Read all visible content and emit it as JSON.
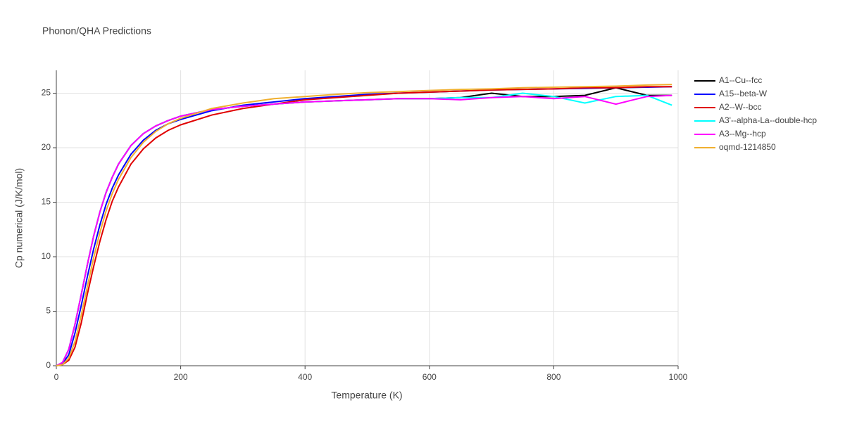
{
  "chart_data": {
    "type": "line",
    "title": "Phonon/QHA Predictions",
    "x_label": "Temperature (K)",
    "y_label": "Cp numerical (J/K/mol)",
    "xlim": [
      0,
      1000
    ],
    "ylim": [
      0,
      27.1
    ],
    "xticks": [
      0,
      200,
      400,
      600,
      800,
      1000
    ],
    "yticks": [
      0,
      5,
      10,
      15,
      20,
      25
    ],
    "grid": true,
    "x": [
      0,
      10,
      20,
      30,
      40,
      50,
      60,
      70,
      80,
      90,
      100,
      120,
      140,
      160,
      180,
      200,
      250,
      300,
      350,
      400,
      450,
      500,
      550,
      600,
      650,
      700,
      750,
      800,
      850,
      900,
      950,
      990
    ],
    "series": [
      {
        "name": "A1--Cu--fcc",
        "color": "#000000",
        "values": [
          0,
          0.3,
          1.5,
          3.8,
          6.5,
          9.3,
          11.9,
          14.1,
          15.9,
          17.3,
          18.5,
          20.2,
          21.3,
          22.0,
          22.5,
          22.9,
          23.5,
          23.8,
          24.0,
          24.2,
          24.3,
          24.4,
          24.5,
          24.5,
          24.6,
          25.0,
          24.7,
          24.7,
          24.8,
          25.5,
          24.8,
          24.8
        ]
      },
      {
        "name": "A15--beta-W",
        "color": "#0000ff",
        "values": [
          0,
          0.2,
          1.0,
          3.0,
          5.5,
          8.2,
          10.7,
          12.9,
          14.8,
          16.3,
          17.5,
          19.4,
          20.7,
          21.6,
          22.2,
          22.6,
          23.4,
          23.9,
          24.2,
          24.5,
          24.7,
          24.9,
          25.0,
          25.1,
          25.2,
          25.3,
          25.35,
          25.4,
          25.45,
          25.5,
          25.55,
          25.6
        ]
      },
      {
        "name": "A2--W--bcc",
        "color": "#e00000",
        "values": [
          0,
          0.1,
          0.5,
          1.7,
          3.9,
          6.6,
          9.1,
          11.4,
          13.4,
          15.1,
          16.4,
          18.5,
          19.9,
          20.9,
          21.6,
          22.1,
          23.0,
          23.6,
          24.0,
          24.4,
          24.6,
          24.8,
          25.0,
          25.1,
          25.2,
          25.3,
          25.35,
          25.4,
          25.5,
          25.5,
          25.6,
          25.6
        ]
      },
      {
        "name": "A3'--alpha-La--double-hcp",
        "color": "#00ffff",
        "values": [
          0,
          0.3,
          1.5,
          3.8,
          6.5,
          9.3,
          11.9,
          14.1,
          15.9,
          17.3,
          18.5,
          20.2,
          21.3,
          22.0,
          22.5,
          22.9,
          23.5,
          23.8,
          24.0,
          24.2,
          24.3,
          24.4,
          24.5,
          24.5,
          24.6,
          24.6,
          25.0,
          24.7,
          24.1,
          24.7,
          24.8,
          23.9
        ]
      },
      {
        "name": "A3--Mg--hcp",
        "color": "#ff00ff",
        "values": [
          0,
          0.3,
          1.5,
          3.8,
          6.5,
          9.3,
          11.9,
          14.1,
          15.9,
          17.3,
          18.5,
          20.2,
          21.3,
          22.0,
          22.5,
          22.9,
          23.5,
          23.8,
          24.0,
          24.2,
          24.3,
          24.4,
          24.5,
          24.5,
          24.4,
          24.6,
          24.7,
          24.5,
          24.7,
          24.0,
          24.7,
          24.8
        ]
      },
      {
        "name": "oqmd-1214850",
        "color": "#f0b030",
        "values": [
          0,
          0.1,
          0.7,
          2.2,
          4.6,
          7.3,
          9.9,
          12.2,
          14.2,
          15.8,
          17.1,
          19.1,
          20.5,
          21.5,
          22.2,
          22.7,
          23.6,
          24.1,
          24.5,
          24.7,
          24.9,
          25.05,
          25.15,
          25.25,
          25.35,
          25.4,
          25.5,
          25.55,
          25.6,
          25.65,
          25.75,
          25.8
        ]
      }
    ]
  }
}
